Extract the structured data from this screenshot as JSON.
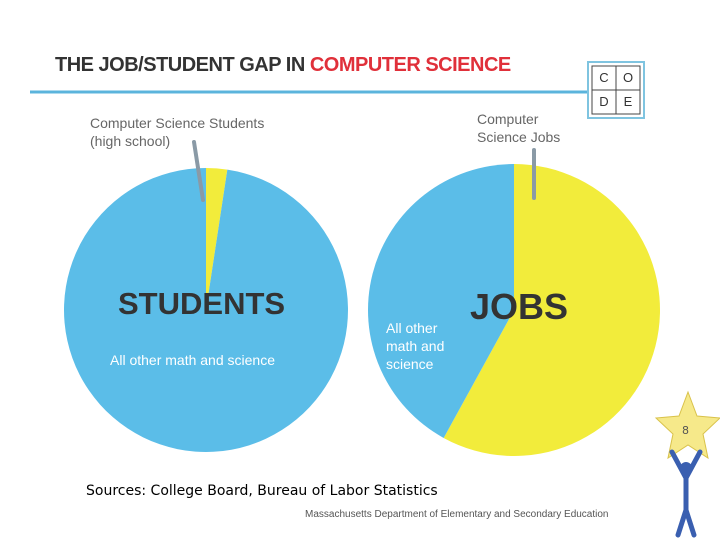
{
  "title_parts": [
    "THE JOB/STUDENT GAP IN ",
    "COMPUTER SCIENCE"
  ],
  "logo": [
    "C",
    "O",
    "D",
    "E"
  ],
  "chart_data": [
    {
      "type": "pie",
      "title": "STUDENTS",
      "categories": [
        "Computer Science Students (high school)",
        "All other math and science"
      ],
      "values": [
        2.4,
        97.6
      ],
      "colors": [
        "#f2ec3b",
        "#5bbde8"
      ]
    },
    {
      "type": "pie",
      "title": "JOBS",
      "categories": [
        "Computer Science Jobs",
        "All other math and science"
      ],
      "values": [
        58,
        42
      ],
      "colors": [
        "#f2ec3b",
        "#5bbde8"
      ]
    }
  ],
  "sources": "Sources: College Board, Bureau of Labor Statistics",
  "footer": "Massachusetts Department of Elementary and Secondary Education",
  "page_number": 8
}
